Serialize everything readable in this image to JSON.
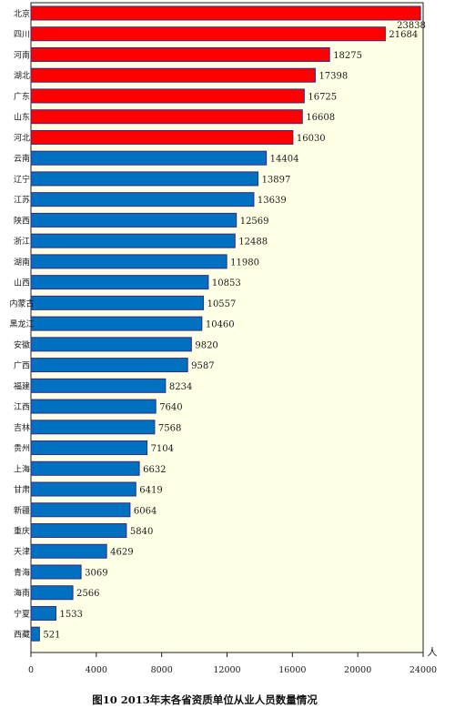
{
  "chart_data": {
    "type": "bar",
    "orientation": "horizontal",
    "title": "",
    "caption": "图10   2013年末各省资质单位从业人员数量情况",
    "xlabel": "人",
    "ylabel": "",
    "xlim": [
      0,
      24000
    ],
    "xticks": [
      0,
      4000,
      8000,
      12000,
      16000,
      20000,
      24000
    ],
    "grid": false,
    "legend": "none",
    "categories": [
      "北京",
      "四川",
      "河南",
      "湖北",
      "广东",
      "山东",
      "河北",
      "云南",
      "辽宁",
      "江苏",
      "陕西",
      "浙江",
      "湖南",
      "山西",
      "内蒙古",
      "黑龙江",
      "安徽",
      "广西",
      "福建",
      "江西",
      "吉林",
      "贵州",
      "上海",
      "甘肃",
      "新疆",
      "重庆",
      "天津",
      "青海",
      "海南",
      "宁夏",
      "西藏"
    ],
    "values": [
      23838,
      21684,
      18275,
      17398,
      16725,
      16608,
      16030,
      14404,
      13897,
      13639,
      12569,
      12488,
      11980,
      10853,
      10557,
      10460,
      9820,
      9587,
      8234,
      7640,
      7568,
      7104,
      6632,
      6419,
      6064,
      5840,
      4629,
      3069,
      2566,
      1533,
      521
    ],
    "highlight_count": 7,
    "colors": {
      "highlight": "#ff0000",
      "normal": "#0070c0",
      "plot_bg": "#ffffe6",
      "bar_border": "#3a2a7a"
    }
  }
}
